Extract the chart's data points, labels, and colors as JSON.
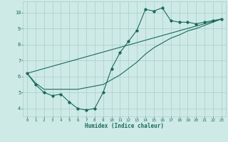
{
  "xlabel": "Humidex (Indice chaleur)",
  "bg_color": "#ceeae6",
  "grid_color": "#aaccc8",
  "line_color": "#1a6b5a",
  "xlim_min": -0.5,
  "xlim_max": 23.5,
  "ylim_min": 3.5,
  "ylim_max": 10.7,
  "xticks": [
    0,
    1,
    2,
    3,
    4,
    5,
    6,
    7,
    8,
    9,
    10,
    11,
    12,
    13,
    14,
    15,
    16,
    17,
    18,
    19,
    20,
    21,
    22,
    23
  ],
  "yticks": [
    4,
    5,
    6,
    7,
    8,
    9,
    10
  ],
  "line1_x": [
    0,
    1,
    2,
    3,
    4,
    5,
    6,
    7,
    8,
    9,
    10,
    11,
    12,
    13,
    14,
    15,
    16,
    17,
    18,
    19,
    20,
    21,
    22,
    23
  ],
  "line1_y": [
    6.2,
    5.5,
    5.0,
    4.8,
    4.9,
    4.4,
    4.0,
    3.9,
    4.0,
    5.0,
    6.5,
    7.5,
    8.2,
    8.9,
    10.2,
    10.1,
    10.3,
    9.5,
    9.4,
    9.4,
    9.3,
    9.4,
    9.5,
    9.6
  ],
  "line2_x": [
    0,
    1,
    2,
    3,
    4,
    5,
    6,
    7,
    8,
    9,
    10,
    11,
    12,
    13,
    14,
    15,
    16,
    17,
    18,
    19,
    20,
    21,
    22,
    23
  ],
  "line2_y": [
    6.2,
    5.6,
    5.2,
    5.2,
    5.2,
    5.2,
    5.2,
    5.3,
    5.4,
    5.5,
    5.8,
    6.1,
    6.5,
    6.9,
    7.4,
    7.8,
    8.1,
    8.4,
    8.6,
    8.85,
    9.0,
    9.2,
    9.4,
    9.6
  ],
  "line3_x": [
    0,
    23
  ],
  "line3_y": [
    6.2,
    9.6
  ]
}
